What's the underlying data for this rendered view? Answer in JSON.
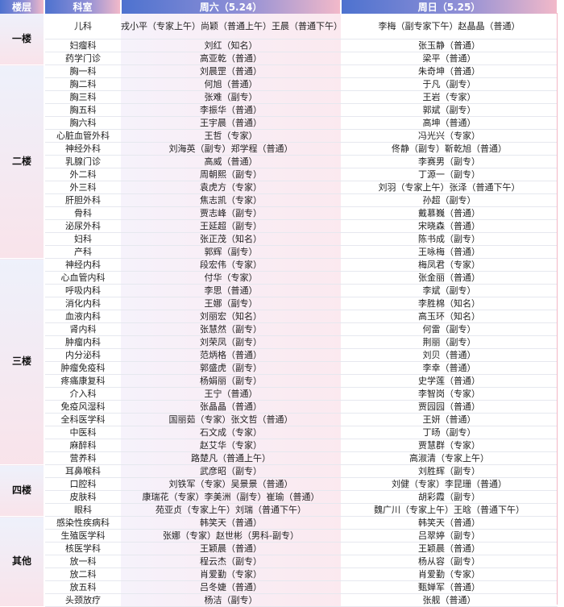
{
  "header": {
    "floor": "楼层",
    "dept": "科室",
    "sat": "周六（5.24）",
    "sun": "周日（5.25）"
  },
  "groups": [
    {
      "floor": "一楼",
      "rows": [
        {
          "dept": "儿科",
          "sat": "戎小平（专家上午）尚颖（普通上午）王晨（普通下午）",
          "sun": "李梅（副专家下午）赵晶晶（普通）"
        },
        {
          "dept": "妇瘤科",
          "sat": "刘红（知名）",
          "sun": "张玉静（普通）"
        },
        {
          "dept": "药学门诊",
          "sat": "高亚乾（普通）",
          "sun": "梁平（普通）"
        }
      ]
    },
    {
      "floor": "二楼",
      "rows": [
        {
          "dept": "胸一科",
          "sat": "刘晨罡（普通）",
          "sun": "朱奇坤（普通）"
        },
        {
          "dept": "胸二科",
          "sat": "何旭（普通）",
          "sun": "于凡（副专）"
        },
        {
          "dept": "胸三科",
          "sat": "张难（副专）",
          "sun": "王岩（专家）"
        },
        {
          "dept": "胸五科",
          "sat": "李振华（普通）",
          "sun": "郭斌（副专）"
        },
        {
          "dept": "胸六科",
          "sat": "王宇晨（普通）",
          "sun": "高坤（普通）"
        },
        {
          "dept": "心脏血管外科",
          "sat": "王哲（专家）",
          "sun": "冯光兴（专家）"
        },
        {
          "dept": "神经外科",
          "sat": "刘海英（副专）郑学程（普通）",
          "sun": "佟静（副专）靳乾旭（普通）"
        },
        {
          "dept": "乳腺门诊",
          "sat": "高威（普通）",
          "sun": "李赛男（副专）"
        },
        {
          "dept": "外二科",
          "sat": "周朝熙（副专）",
          "sun": "丁源一（副专）"
        },
        {
          "dept": "外三科",
          "sat": "袁虎方（专家）",
          "sun": "刘羽（专家上午）张泽（普通下午）"
        },
        {
          "dept": "肝胆外科",
          "sat": "焦志凯（专家）",
          "sun": "孙超（副专）"
        },
        {
          "dept": "骨科",
          "sat": "贾志峰（副专）",
          "sun": "戴慕巍（普通）"
        },
        {
          "dept": "泌尿外科",
          "sat": "王延超（副专）",
          "sun": "宋晓森（普通）"
        },
        {
          "dept": "妇科",
          "sat": "张正茂（知名）",
          "sun": "陈书成（副专）"
        },
        {
          "dept": "产科",
          "sat": "郭辉（副专）",
          "sun": "王咏梅（普通）"
        }
      ]
    },
    {
      "floor": "三楼",
      "rows": [
        {
          "dept": "神经内科",
          "sat": "段宏伟（专家）",
          "sun": "梅凤君（专家）"
        },
        {
          "dept": "心血管内科",
          "sat": "付华（专家）",
          "sun": "张金丽（普通）"
        },
        {
          "dept": "呼吸内科",
          "sat": "李思（普通）",
          "sun": "李斌（副专）"
        },
        {
          "dept": "消化内科",
          "sat": "王娜（副专）",
          "sun": "李胜棉（知名）"
        },
        {
          "dept": "血液内科",
          "sat": "刘丽宏（知名）",
          "sun": "高玉环（知名）"
        },
        {
          "dept": "肾内科",
          "sat": "张慧然（副专）",
          "sun": "何雷（副专）"
        },
        {
          "dept": "肿瘤内科",
          "sat": "刘荣凤（副专）",
          "sun": "荆丽（副专）"
        },
        {
          "dept": "内分泌科",
          "sat": "范炳格（普通）",
          "sun": "刘贝（普通）"
        },
        {
          "dept": "肿瘤免疫科",
          "sat": "郭盛虎（副专）",
          "sun": "李幸（普通）"
        },
        {
          "dept": "疼痛康复科",
          "sat": "杨娟丽（副专）",
          "sun": "史学莲（普通）"
        },
        {
          "dept": "介入科",
          "sat": "王宁（普通）",
          "sun": "李智岗（专家）"
        },
        {
          "dept": "免疫风湿科",
          "sat": "张晶晶（普通）",
          "sun": "贾园园（普通）"
        },
        {
          "dept": "全科医学科",
          "sat": "国丽茹（专家）张文哲（普通）",
          "sun": "王妍（普通）"
        },
        {
          "dept": "中医科",
          "sat": "石文成（专家）",
          "sun": "丁旸（副专）"
        },
        {
          "dept": "麻醉科",
          "sat": "赵艾华（专家）",
          "sun": "贾慧群（专家）"
        },
        {
          "dept": "营养科",
          "sat": "路楚凡（普通上午）",
          "sun": "高淑清（专家上午）"
        }
      ]
    },
    {
      "floor": "四楼",
      "rows": [
        {
          "dept": "耳鼻喉科",
          "sat": "武彦昭（副专）",
          "sun": "刘胜辉（副专）"
        },
        {
          "dept": "口腔科",
          "sat": "刘铁军（专家）吴景景（普通）",
          "sun": "刘健（专家）李昆珊（普通）"
        },
        {
          "dept": "皮肤科",
          "sat": "康瑞花（专家）李美洲（副专）崔瑜（普通）",
          "sun": "胡彩霞（副专）"
        },
        {
          "dept": "眼科",
          "sat": "苑亚贞（专家上午）刘瑞（普通下午）",
          "sun": "魏广川（专家上午）王晗（普通下午）"
        }
      ]
    },
    {
      "floor": "其他",
      "rows": [
        {
          "dept": "感染性疾病科",
          "sat": "韩笑天（普通）",
          "sun": "韩笑天（普通）"
        },
        {
          "dept": "生殖医学科",
          "sat": "张娜（专家）赵世彬（男科-副专）",
          "sun": "吕翠婷（副专）"
        },
        {
          "dept": "核医学科",
          "sat": "王颖晨（普通）",
          "sun": "王颖晨（普通）"
        },
        {
          "dept": "放一科",
          "sat": "程云杰（副专）",
          "sun": "杨从容（副专）"
        },
        {
          "dept": "放二科",
          "sat": "肖爱勤（专家）",
          "sun": "肖爱勤（专家）"
        },
        {
          "dept": "放五科",
          "sat": "吕冬婕（普通）",
          "sun": "甄婵军（普通）"
        },
        {
          "dept": "头颈放疗",
          "sat": "杨洁（副专）",
          "sun": "张舰（普通）"
        }
      ]
    }
  ]
}
